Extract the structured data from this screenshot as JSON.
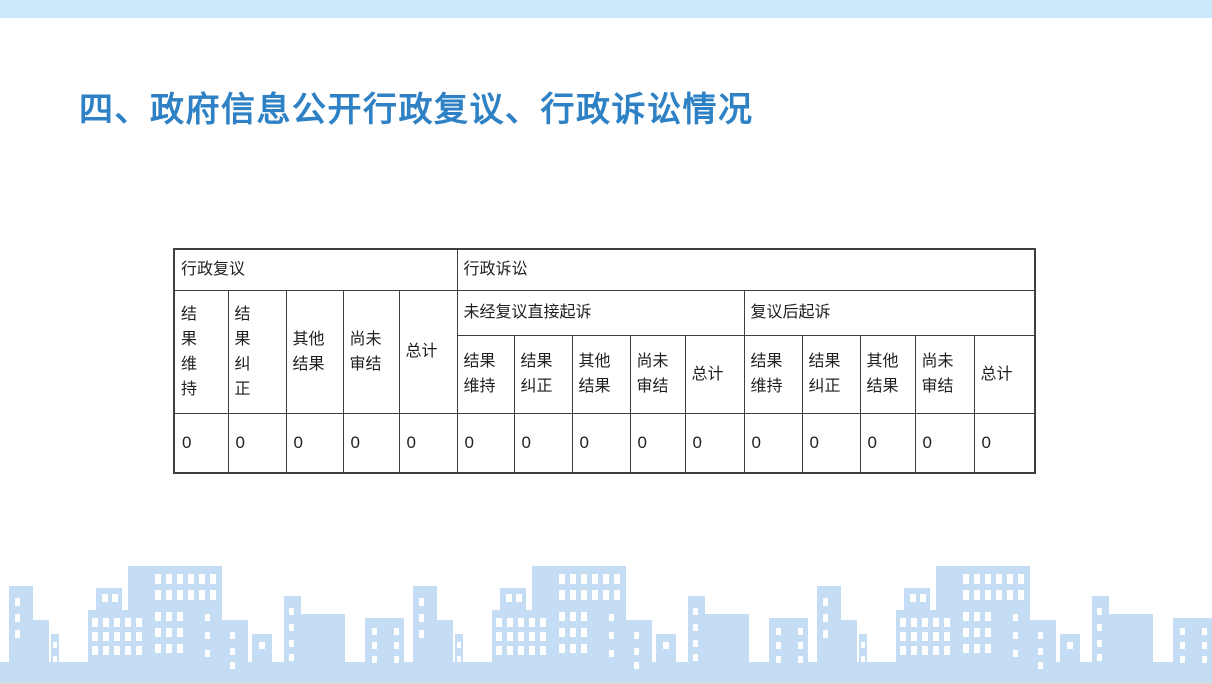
{
  "colors": {
    "title-blue": "#2e81c4",
    "strip-blue": "#cbe9fb",
    "skyline-blue": "#c5ddf4",
    "table-border": "#3f3f3f"
  },
  "slide": {
    "title": "四、政府信息公开行政复议、行政诉讼情况"
  },
  "table": {
    "group_reconsideration_label": "行政复议",
    "group_litigation_label": "行政诉讼",
    "subgroup_direct_lawsuit_label": "未经复议直接起诉",
    "subgroup_after_reconsideration_label": "复议后起诉",
    "reconsideration_headers": [
      [
        "结",
        "果",
        "维",
        "持"
      ],
      [
        "结",
        "果",
        "纠",
        "正"
      ],
      [
        "其他",
        "结果"
      ],
      [
        "尚未",
        "审结"
      ],
      [
        "总计"
      ]
    ],
    "direct_lawsuit_headers": [
      [
        "结果",
        "维持"
      ],
      [
        "结果",
        "纠正"
      ],
      [
        "其他",
        "结果"
      ],
      [
        "尚未",
        "审结"
      ],
      [
        "总计"
      ]
    ],
    "after_reconsideration_headers": [
      [
        "结果",
        "维持"
      ],
      [
        "结果",
        "纠正"
      ],
      [
        "其他",
        "结果"
      ],
      [
        "尚未",
        "审结"
      ],
      [
        "总计"
      ]
    ],
    "values": [
      "0",
      "0",
      "0",
      "0",
      "0",
      "0",
      "0",
      "0",
      "0",
      "0",
      "0",
      "0",
      "0",
      "0",
      "0"
    ]
  }
}
